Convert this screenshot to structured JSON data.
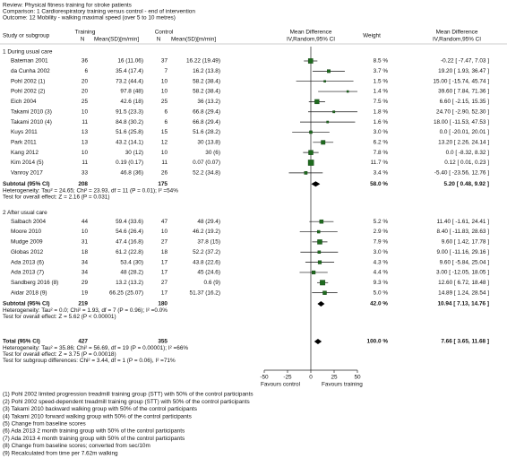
{
  "chart_data": {
    "type": "forest",
    "review": "Review:   Physical fitness training for stroke patients",
    "comparison": "Comparison:   1 Cardiorespiratory training versus control - end of intervention",
    "outcome": "Outcome:   12 Mobility - walking maximal speed (over 5 to 10 metres)",
    "columns": {
      "study": "Study or subgroup",
      "training": "Training",
      "training_n": "N",
      "training_msd": "Mean(SD)[m/min]",
      "control": "Control",
      "control_n": "N",
      "control_msd": "Mean(SD)[m/min]",
      "md_plot": "Mean Difference",
      "md_plot_method": "IV,Random,95% CI",
      "weight": "Weight",
      "md": "Mean Difference",
      "md_method": "IV,Random,95% CI"
    },
    "groups": [
      {
        "name": "1 During usual care",
        "studies": [
          {
            "study": "Bateman 2001",
            "training_n": 36,
            "training_msd": "16 (11.06)",
            "control_n": 37,
            "control_msd": "16.22 (19.49)",
            "weight": 8.5,
            "weight_label": "8.5 %",
            "md": -0.22,
            "ci": [
              -7.47,
              7.03
            ],
            "md_label": "-0.22 [ -7.47, 7.03 ]"
          },
          {
            "study": "da Cunha 2002",
            "training_n": 6,
            "training_msd": "35.4 (17.4)",
            "control_n": 7,
            "control_msd": "16.2 (13.8)",
            "weight": 3.7,
            "weight_label": "3.7 %",
            "md": 19.2,
            "ci": [
              1.93,
              36.47
            ],
            "md_label": "19.20 [ 1.93, 36.47 ]"
          },
          {
            "study": "Pohl 2002 (1)",
            "training_n": 20,
            "training_msd": "73.2 (44.4)",
            "control_n": 10,
            "control_msd": "58.2 (38.4)",
            "weight": 1.5,
            "weight_label": "1.5 %",
            "md": 15,
            "ci": [
              -15.74,
              45.74
            ],
            "md_label": "15.00 [ -15.74, 45.74 ]"
          },
          {
            "study": "Pohl 2002 (2)",
            "training_n": 20,
            "training_msd": "97.8 (48)",
            "control_n": 10,
            "control_msd": "58.2 (38.4)",
            "weight": 1.4,
            "weight_label": "1.4 %",
            "md": 39.6,
            "ci": [
              7.84,
              71.36
            ],
            "md_label": "39.60 [ 7.84, 71.36 ]"
          },
          {
            "study": "Eich 2004",
            "training_n": 25,
            "training_msd": "42.6 (18)",
            "control_n": 25,
            "control_msd": "36 (13.2)",
            "weight": 7.5,
            "weight_label": "7.5 %",
            "md": 6.6,
            "ci": [
              -2.15,
              15.35
            ],
            "md_label": "6.60 [ -2.15, 15.35 ]"
          },
          {
            "study": "Takami 2010 (3)",
            "training_n": 10,
            "training_msd": "91.5 (23.3)",
            "control_n": 6,
            "control_msd": "66.8 (29.4)",
            "weight": 1.8,
            "weight_label": "1.8 %",
            "md": 24.7,
            "ci": [
              -2.9,
              52.3
            ],
            "md_label": "24.70 [ -2.90, 52.30 ]"
          },
          {
            "study": "Takami 2010 (4)",
            "training_n": 11,
            "training_msd": "84.8 (30.2)",
            "control_n": 6,
            "control_msd": "66.8 (29.4)",
            "weight": 1.6,
            "weight_label": "1.6 %",
            "md": 18,
            "ci": [
              -11.53,
              47.53
            ],
            "md_label": "18.00 [ -11.53, 47.53 ]"
          },
          {
            "study": "Kuys 2011",
            "training_n": 13,
            "training_msd": "51.6 (25.8)",
            "control_n": 15,
            "control_msd": "51.6 (28.2)",
            "weight": 3.0,
            "weight_label": "3.0 %",
            "md": 0,
            "ci": [
              -20.01,
              20.01
            ],
            "md_label": "0.0 [ -20.01, 20.01 ]"
          },
          {
            "study": "Park 2011",
            "training_n": 13,
            "training_msd": "43.2 (14.1)",
            "control_n": 12,
            "control_msd": "30 (13.8)",
            "weight": 6.2,
            "weight_label": "6.2 %",
            "md": 13.2,
            "ci": [
              2.26,
              24.14
            ],
            "md_label": "13.20 [ 2.26, 24.14 ]"
          },
          {
            "study": "Kang 2012",
            "training_n": 10,
            "training_msd": "30 (12)",
            "control_n": 10,
            "control_msd": "30 (6)",
            "weight": 7.8,
            "weight_label": "7.8 %",
            "md": 0,
            "ci": [
              -8.32,
              8.32
            ],
            "md_label": "0.0 [ -8.32, 8.32 ]"
          },
          {
            "study": "Kim 2014 (5)",
            "training_n": 11,
            "training_msd": "0.19 (0.17)",
            "control_n": 11,
            "control_msd": "0.07 (0.07)",
            "weight": 11.7,
            "weight_label": "11.7 %",
            "md": 0.12,
            "ci": [
              0.01,
              0.23
            ],
            "md_label": "0.12 [ 0.01, 0.23 ]"
          },
          {
            "study": "Vanroy 2017",
            "training_n": 33,
            "training_msd": "46.8 (36)",
            "control_n": 26,
            "control_msd": "52.2 (34.8)",
            "weight": 3.4,
            "weight_label": "3.4 %",
            "md": -5.4,
            "ci": [
              -23.56,
              12.76
            ],
            "md_label": "-5.40 [ -23.56, 12.76 ]"
          }
        ],
        "subtotal": {
          "label": "Subtotal (95% CI)",
          "training_n": 208,
          "control_n": 175,
          "weight": 58.0,
          "weight_label": "58.0 %",
          "md": 5.2,
          "ci": [
            0.48,
            9.92
          ],
          "md_label": "5.20 [ 0.48, 9.92 ]"
        },
        "heterogeneity": "Heterogeneity: Tau² = 24.65; Chi² = 23.93, df = 11 (P = 0.01); I² =54%",
        "overall_effect": "Test for overall effect: Z = 2.16 (P = 0.031)"
      },
      {
        "name": "2 After usual care",
        "studies": [
          {
            "study": "Salbach 2004",
            "training_n": 44,
            "training_msd": "59.4 (33.6)",
            "control_n": 47,
            "control_msd": "48 (29.4)",
            "weight": 5.2,
            "weight_label": "5.2 %",
            "md": 11.4,
            "ci": [
              -1.61,
              24.41
            ],
            "md_label": "11.40 [ -1.61, 24.41 ]"
          },
          {
            "study": "Moore 2010",
            "training_n": 10,
            "training_msd": "54.6 (26.4)",
            "control_n": 10,
            "control_msd": "46.2 (19.2)",
            "weight": 2.9,
            "weight_label": "2.9 %",
            "md": 8.4,
            "ci": [
              -11.83,
              28.63
            ],
            "md_label": "8.40 [ -11.83, 28.63 ]"
          },
          {
            "study": "Mudge 2009",
            "training_n": 31,
            "training_msd": "47.4 (16.8)",
            "control_n": 27,
            "control_msd": "37.8 (15)",
            "weight": 7.9,
            "weight_label": "7.9 %",
            "md": 9.6,
            "ci": [
              1.42,
              17.78
            ],
            "md_label": "9.60 [ 1.42, 17.78 ]"
          },
          {
            "study": "Globas 2012",
            "training_n": 18,
            "training_msd": "61.2 (22.8)",
            "control_n": 18,
            "control_msd": "52.2 (37.2)",
            "weight": 3.0,
            "weight_label": "3.0 %",
            "md": 9,
            "ci": [
              -11.16,
              29.16
            ],
            "md_label": "9.00 [ -11.16, 29.16 ]"
          },
          {
            "study": "Ada 2013 (6)",
            "training_n": 34,
            "training_msd": "53.4 (30)",
            "control_n": 17,
            "control_msd": "43.8 (22.6)",
            "weight": 4.3,
            "weight_label": "4.3 %",
            "md": 9.6,
            "ci": [
              -5.84,
              25.04
            ],
            "md_label": "9.60 [ -5.84, 25.04 ]"
          },
          {
            "study": "Ada 2013 (7)",
            "training_n": 34,
            "training_msd": "48 (28.2)",
            "control_n": 17,
            "control_msd": "45 (24.6)",
            "weight": 4.4,
            "weight_label": "4.4 %",
            "md": 3,
            "ci": [
              -12.05,
              18.05
            ],
            "md_label": "3.00 [ -12.05, 18.05 ]"
          },
          {
            "study": "Sandberg 2016 (8)",
            "training_n": 29,
            "training_msd": "13.2 (13.2)",
            "control_n": 27,
            "control_msd": "0.6 (9)",
            "weight": 9.3,
            "weight_label": "9.3 %",
            "md": 12.6,
            "ci": [
              6.72,
              18.48
            ],
            "md_label": "12.60 [ 6.72, 18.48 ]"
          },
          {
            "study": "Aidar 2018 (9)",
            "training_n": 19,
            "training_msd": "66.25 (25.07)",
            "control_n": 17,
            "control_msd": "51.37 (16.2)",
            "weight": 5.0,
            "weight_label": "5.0 %",
            "md": 14.89,
            "ci": [
              1.24,
              28.54
            ],
            "md_label": "14.89 [ 1.24, 28.54 ]"
          }
        ],
        "subtotal": {
          "label": "Subtotal (95% CI)",
          "training_n": 219,
          "control_n": 180,
          "weight": 42.0,
          "weight_label": "42.0 %",
          "md": 10.94,
          "ci": [
            7.13,
            14.76
          ],
          "md_label": "10.94 [ 7.13, 14.76 ]"
        },
        "heterogeneity": "Heterogeneity: Tau² = 0.0; Chi² = 1.93, df = 7 (P = 0.96); I² =0.0%",
        "overall_effect": "Test for overall effect: Z = 5.62 (P < 0.00001)"
      }
    ],
    "total": {
      "label": "Total (95% CI)",
      "training_n": 427,
      "control_n": 355,
      "weight": 100.0,
      "weight_label": "100.0 %",
      "md": 7.66,
      "ci": [
        3.65,
        11.68
      ],
      "md_label": "7.66 [ 3.65, 11.68 ]"
    },
    "total_heterogeneity": "Heterogeneity: Tau² = 35.86; Chi² = 56.69, df = 19 (P = 0.00001); I² =66%",
    "total_overall_effect": "Test for overall effect: Z = 3.75 (P = 0.00018)",
    "subgroup_test": "Test for subgroup differences: Chi² = 3.44, df = 1 (P = 0.06), I² =71%",
    "xlim": [
      -50,
      50
    ],
    "xticks": [
      -50,
      -25,
      0,
      25,
      50
    ],
    "favours_left": "Favours control",
    "favours_right": "Favours training",
    "square_color": "#1f6b1f",
    "footnotes": [
      "(1) Pohl 2002 limited progression treadmill training group (STT) with 50% of the control participants",
      "(2) Pohl 2002 speed-dependent treadmill training group (STT) with 50% of the control participants",
      "(3) Takami 2010 backward walking group with 50% of the control participants",
      "(4) Takami 2010 forward walking group with 50% of the control participants",
      "(5) Change from baseline scores",
      "(6) Ada 2013 2 month training group with 50% of the control participants",
      "(7) Ada 2013 4 month training group with 50% of the control participants",
      "(8) Change from baseline scores; converted from sec/10m",
      "(9) Recalculated from time per 7.62m walking"
    ]
  }
}
